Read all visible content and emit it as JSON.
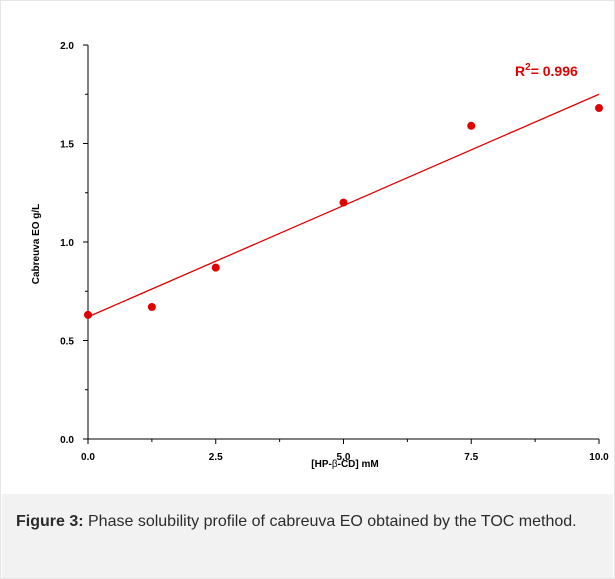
{
  "chart_data": {
    "type": "scatter",
    "xlabel_prefix": "[HP-",
    "xlabel_symbol": "β",
    "xlabel_suffix": "-CD] mM",
    "ylabel": "Cabreuva EO g/L",
    "xlim": [
      0,
      10
    ],
    "ylim": [
      0,
      2
    ],
    "x_ticks": [
      0,
      2.5,
      5,
      7.5,
      10
    ],
    "x_tick_labels": [
      "0.0",
      "2.5",
      "5.0",
      "7.5",
      "10.0"
    ],
    "y_ticks": [
      0,
      0.5,
      1,
      1.5,
      2
    ],
    "y_tick_labels": [
      "0.0",
      "0.5",
      "1.0",
      "1.5",
      "2.0"
    ],
    "grid": false,
    "points": [
      {
        "x": 0,
        "y": 0.63
      },
      {
        "x": 1.25,
        "y": 0.67
      },
      {
        "x": 2.5,
        "y": 0.87
      },
      {
        "x": 5,
        "y": 1.2
      },
      {
        "x": 7.5,
        "y": 1.59
      },
      {
        "x": 10,
        "y": 1.68
      }
    ],
    "fit_line": {
      "x": [
        0,
        10
      ],
      "y": [
        0.62,
        1.75
      ]
    },
    "annotation": {
      "prefix": "R",
      "superscript": "2",
      "text": "= 0.996"
    },
    "marker_color": "#e00000",
    "line_color": "#e00000"
  },
  "caption": {
    "label": "Figure 3:",
    "text": " Phase solubility profile of cabreuva EO obtained by the TOC method."
  }
}
